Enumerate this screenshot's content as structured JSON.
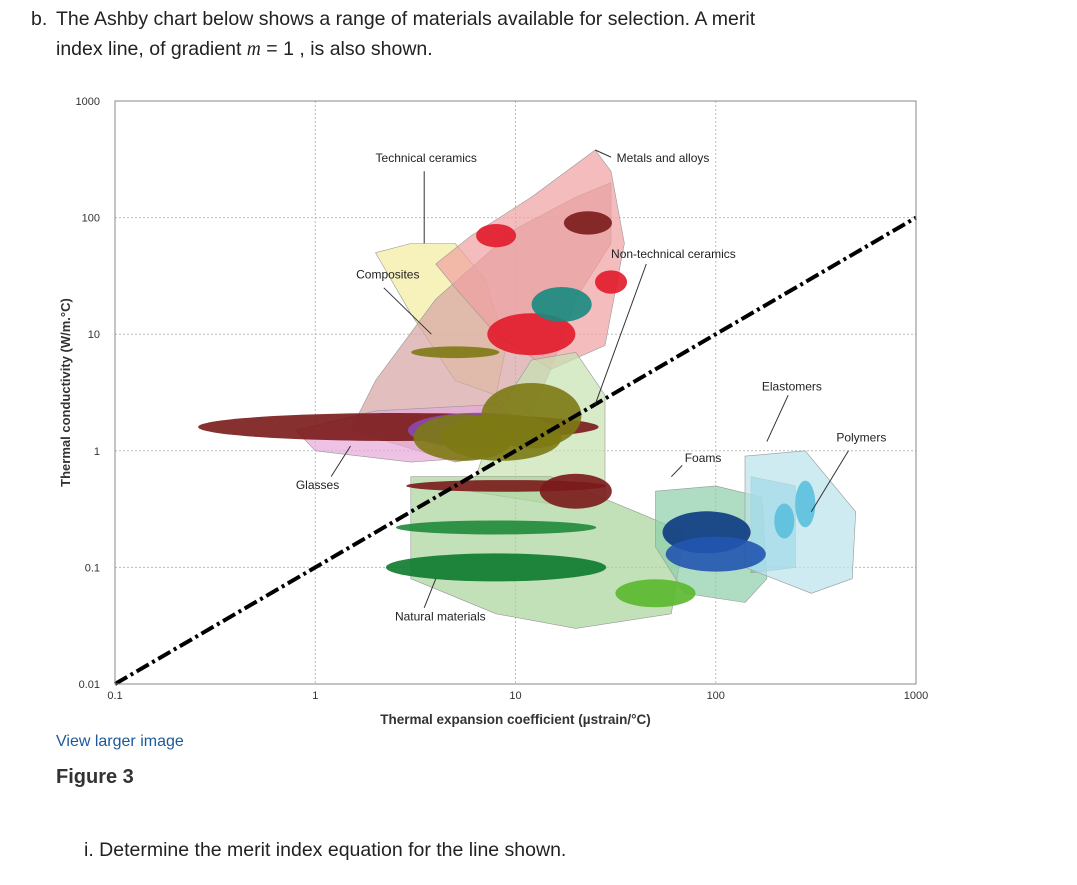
{
  "question": {
    "part": "b.",
    "line1": "The Ashby chart below shows a range of materials available for selection. A merit",
    "line2_before": "index line, of gradient ",
    "line2_var": "m",
    "line2_after": " = 1 , is also shown."
  },
  "chart_data": {
    "type": "scatter",
    "subtype": "ashby-bubble",
    "xlabel": "Thermal expansion coefficient (µstrain/°C)",
    "ylabel": "Thermal conductivity (W/m.°C)",
    "xscale": "log",
    "yscale": "log",
    "xlim": [
      0.1,
      1000
    ],
    "ylim": [
      0.01,
      1000
    ],
    "xticks": [
      "0.1",
      "1",
      "10",
      "100",
      "1000"
    ],
    "yticks": [
      "1000",
      "100",
      "10",
      "1",
      "0.1",
      "0.01"
    ],
    "grid": true,
    "merit_line": {
      "gradient": 1,
      "from": [
        0.1,
        0.01
      ],
      "to": [
        1000,
        100
      ]
    },
    "families": [
      {
        "name": "Technical ceramics",
        "color": "#f4eca0",
        "points": [
          [
            2,
            50
          ],
          [
            3,
            60
          ],
          [
            5,
            60
          ],
          [
            7,
            30
          ],
          [
            9,
            8
          ],
          [
            8,
            3
          ],
          [
            5,
            4
          ],
          [
            3,
            15
          ]
        ]
      },
      {
        "name": "Composites",
        "color": "#d6a3a3",
        "points": [
          [
            1.5,
            1.5
          ],
          [
            2,
            4
          ],
          [
            4,
            20
          ],
          [
            10,
            80
          ],
          [
            20,
            150
          ],
          [
            30,
            200
          ],
          [
            30,
            60
          ],
          [
            20,
            20
          ],
          [
            15,
            5
          ],
          [
            10,
            1
          ],
          [
            5,
            0.8
          ]
        ]
      },
      {
        "name": "Metals and alloys",
        "color": "#f0a0a0",
        "points": [
          [
            4,
            40
          ],
          [
            6,
            70
          ],
          [
            12,
            150
          ],
          [
            25,
            380
          ],
          [
            30,
            250
          ],
          [
            35,
            60
          ],
          [
            28,
            8
          ],
          [
            15,
            5
          ],
          [
            8,
            10
          ],
          [
            5,
            25
          ]
        ]
      },
      {
        "name": "Non-technical ceramics",
        "color": "#c6e2b2",
        "points": [
          [
            6,
            0.45
          ],
          [
            8,
            2
          ],
          [
            12,
            6
          ],
          [
            20,
            7
          ],
          [
            28,
            3
          ],
          [
            28,
            0.4
          ],
          [
            15,
            0.35
          ]
        ]
      },
      {
        "name": "Glasses",
        "color": "#e6a8d8",
        "points": [
          [
            0.8,
            1.5
          ],
          [
            2,
            2.2
          ],
          [
            8,
            2.5
          ],
          [
            12,
            1.5
          ],
          [
            8,
            0.9
          ],
          [
            3,
            0.8
          ],
          [
            1,
            1
          ]
        ]
      },
      {
        "name": "Natural materials",
        "color": "#a9d49a",
        "points": [
          [
            3,
            0.6
          ],
          [
            15,
            0.6
          ],
          [
            40,
            0.3
          ],
          [
            70,
            0.2
          ],
          [
            60,
            0.04
          ],
          [
            20,
            0.03
          ],
          [
            8,
            0.04
          ],
          [
            3,
            0.08
          ]
        ]
      },
      {
        "name": "Foams",
        "color": "#8ccfaa",
        "points": [
          [
            50,
            0.45
          ],
          [
            100,
            0.5
          ],
          [
            170,
            0.4
          ],
          [
            180,
            0.08
          ],
          [
            140,
            0.05
          ],
          [
            70,
            0.06
          ],
          [
            50,
            0.15
          ]
        ]
      },
      {
        "name": "Elastomers",
        "color": "#6ec6df",
        "points": [
          [
            150,
            0.6
          ],
          [
            250,
            0.5
          ],
          [
            250,
            0.1
          ],
          [
            150,
            0.09
          ]
        ]
      },
      {
        "name": "Polymers",
        "color": "#b8e2ea",
        "points": [
          [
            140,
            0.9
          ],
          [
            280,
            1
          ],
          [
            500,
            0.3
          ],
          [
            480,
            0.08
          ],
          [
            300,
            0.06
          ],
          [
            140,
            0.1
          ]
        ]
      }
    ],
    "annotations": [
      {
        "text": "Technical ceramics"
      },
      {
        "text": "Metals and alloys"
      },
      {
        "text": "Non-technical ceramics"
      },
      {
        "text": "Composites"
      },
      {
        "text": "Foams"
      },
      {
        "text": "Elastomers"
      },
      {
        "text": "Polymers"
      },
      {
        "text": "Glasses"
      },
      {
        "text": "Natural materials"
      }
    ],
    "bubbles": [
      {
        "x": 2.6,
        "y": 1.6,
        "rx": 1.0,
        "ry": 0.12,
        "color": "#7a1a1a"
      },
      {
        "x": 6.5,
        "y": 1.5,
        "rx": 0.35,
        "ry": 0.15,
        "color": "#8a4ab0"
      },
      {
        "x": 5.5,
        "y": 1.3,
        "rx": 0.25,
        "ry": 0.2,
        "color": "#7d7a14"
      },
      {
        "x": 8.5,
        "y": 1.3,
        "rx": 0.3,
        "ry": 0.2,
        "color": "#7d7a14"
      },
      {
        "x": 12,
        "y": 2.0,
        "rx": 0.25,
        "ry": 0.28,
        "color": "#7d7a14"
      },
      {
        "x": 5,
        "y": 7,
        "rx": 0.22,
        "ry": 0.05,
        "color": "#7d7a14"
      },
      {
        "x": 9,
        "y": 0.5,
        "rx": 0.5,
        "ry": 0.05,
        "color": "#7a1a1a"
      },
      {
        "x": 20,
        "y": 0.45,
        "rx": 0.18,
        "ry": 0.15,
        "color": "#7a1a1a"
      },
      {
        "x": 12,
        "y": 10,
        "rx": 0.22,
        "ry": 0.18,
        "color": "#e21a2a"
      },
      {
        "x": 17,
        "y": 18,
        "rx": 0.15,
        "ry": 0.15,
        "color": "#178a80"
      },
      {
        "x": 8,
        "y": 70,
        "rx": 0.1,
        "ry": 0.1,
        "color": "#e21a2a"
      },
      {
        "x": 23,
        "y": 90,
        "rx": 0.12,
        "ry": 0.1,
        "color": "#7a1a1a"
      },
      {
        "x": 30,
        "y": 28,
        "rx": 0.08,
        "ry": 0.1,
        "color": "#e21a2a"
      },
      {
        "x": 8,
        "y": 0.22,
        "rx": 0.5,
        "ry": 0.06,
        "color": "#1f8a3a"
      },
      {
        "x": 8,
        "y": 0.1,
        "rx": 0.55,
        "ry": 0.12,
        "color": "#0d7a2e"
      },
      {
        "x": 50,
        "y": 0.06,
        "rx": 0.2,
        "ry": 0.12,
        "color": "#5ab82e"
      },
      {
        "x": 90,
        "y": 0.2,
        "rx": 0.22,
        "ry": 0.18,
        "color": "#0c3a82"
      },
      {
        "x": 100,
        "y": 0.13,
        "rx": 0.25,
        "ry": 0.15,
        "color": "#2255b0"
      },
      {
        "x": 220,
        "y": 0.25,
        "rx": 0.05,
        "ry": 0.15,
        "color": "#5bc0de"
      },
      {
        "x": 280,
        "y": 0.35,
        "rx": 0.05,
        "ry": 0.2,
        "color": "#5bc0de"
      }
    ]
  },
  "footer": {
    "link": "View larger image",
    "figure": "Figure 3",
    "subquestion": "i. Determine the merit index equation for the line shown."
  },
  "colors": {
    "merit_line": "#000000",
    "link": "#1a5a9c"
  }
}
